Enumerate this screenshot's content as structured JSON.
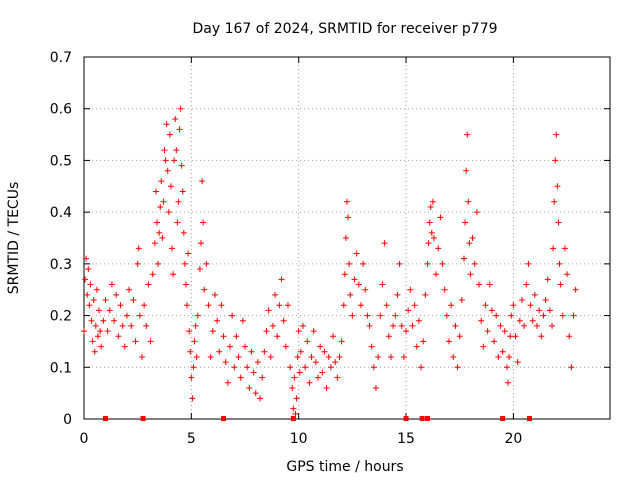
{
  "chart_data": {
    "type": "scatter",
    "title": "Day 167 of 2024, SRMTID for receiver p779",
    "xlabel": "GPS time / hours",
    "ylabel": "SRMTID / TECUs",
    "xlim": [
      0,
      24.5
    ],
    "ylim": [
      0,
      0.7
    ],
    "xticks": [
      0,
      5,
      10,
      15,
      20
    ],
    "yticks": [
      0,
      0.1,
      0.2,
      0.3,
      0.4,
      0.5,
      0.6,
      0.7
    ],
    "xtick_labels": [
      "0",
      "5",
      "10",
      "15",
      "20"
    ],
    "ytick_labels": [
      "0",
      "0.1",
      "0.2",
      "0.3",
      "0.4",
      "0.5",
      "0.6",
      "0.7"
    ],
    "grid": true,
    "marker": "+",
    "color": "#ff0000",
    "series": [
      {
        "name": "SRMTID",
        "points": [
          [
            0.0,
            0.17
          ],
          [
            0.05,
            0.27
          ],
          [
            0.1,
            0.31
          ],
          [
            0.15,
            0.24
          ],
          [
            0.2,
            0.29
          ],
          [
            0.25,
            0.22
          ],
          [
            0.3,
            0.26
          ],
          [
            0.35,
            0.19
          ],
          [
            0.4,
            0.15
          ],
          [
            0.45,
            0.23
          ],
          [
            0.5,
            0.13
          ],
          [
            0.55,
            0.18
          ],
          [
            0.6,
            0.25
          ],
          [
            0.65,
            0.16
          ],
          [
            0.7,
            0.21
          ],
          [
            0.75,
            0.17
          ],
          [
            0.8,
            0.14
          ],
          [
            0.9,
            0.19
          ],
          [
            1.0,
            0.23
          ],
          [
            1.1,
            0.17
          ],
          [
            1.2,
            0.21
          ],
          [
            1.3,
            0.26
          ],
          [
            1.4,
            0.19
          ],
          [
            1.5,
            0.24
          ],
          [
            1.6,
            0.16
          ],
          [
            1.7,
            0.22
          ],
          [
            1.8,
            0.18
          ],
          [
            1.9,
            0.14
          ],
          [
            2.0,
            0.2
          ],
          [
            2.1,
            0.25
          ],
          [
            2.2,
            0.18
          ],
          [
            2.3,
            0.23
          ],
          [
            2.4,
            0.15
          ],
          [
            2.5,
            0.3
          ],
          [
            2.55,
            0.33
          ],
          [
            2.6,
            0.2
          ],
          [
            2.7,
            0.12
          ],
          [
            2.8,
            0.22
          ],
          [
            2.9,
            0.18
          ],
          [
            3.0,
            0.26
          ],
          [
            3.1,
            0.15
          ],
          [
            3.2,
            0.28
          ],
          [
            3.3,
            0.34
          ],
          [
            3.35,
            0.44
          ],
          [
            3.4,
            0.38
          ],
          [
            3.45,
            0.3
          ],
          [
            3.5,
            0.36
          ],
          [
            3.55,
            0.41
          ],
          [
            3.6,
            0.46
          ],
          [
            3.65,
            0.35
          ],
          [
            3.7,
            0.42
          ],
          [
            3.75,
            0.52
          ],
          [
            3.8,
            0.5
          ],
          [
            3.85,
            0.57
          ],
          [
            3.9,
            0.48
          ],
          [
            3.95,
            0.4
          ],
          [
            4.0,
            0.55
          ],
          [
            4.05,
            0.45
          ],
          [
            4.1,
            0.33
          ],
          [
            4.15,
            0.28
          ],
          [
            4.2,
            0.5
          ],
          [
            4.25,
            0.58
          ],
          [
            4.3,
            0.52
          ],
          [
            4.35,
            0.38
          ],
          [
            4.4,
            0.42
          ],
          [
            4.45,
            0.56
          ],
          [
            4.5,
            0.6
          ],
          [
            4.55,
            0.49
          ],
          [
            4.6,
            0.44
          ],
          [
            4.65,
            0.36
          ],
          [
            4.7,
            0.3
          ],
          [
            4.75,
            0.26
          ],
          [
            4.8,
            0.22
          ],
          [
            4.85,
            0.32
          ],
          [
            4.9,
            0.17
          ],
          [
            4.95,
            0.13
          ],
          [
            5.0,
            0.08
          ],
          [
            5.05,
            0.04
          ],
          [
            5.1,
            0.1
          ],
          [
            5.15,
            0.15
          ],
          [
            5.2,
            0.18
          ],
          [
            5.25,
            0.12
          ],
          [
            5.3,
            0.2
          ],
          [
            5.4,
            0.29
          ],
          [
            5.45,
            0.34
          ],
          [
            5.5,
            0.46
          ],
          [
            5.55,
            0.38
          ],
          [
            5.6,
            0.25
          ],
          [
            5.7,
            0.3
          ],
          [
            5.8,
            0.22
          ],
          [
            5.9,
            0.12
          ],
          [
            6.0,
            0.17
          ],
          [
            6.1,
            0.24
          ],
          [
            6.2,
            0.19
          ],
          [
            6.3,
            0.13
          ],
          [
            6.4,
            0.22
          ],
          [
            6.5,
            0.16
          ],
          [
            6.6,
            0.11
          ],
          [
            6.7,
            0.07
          ],
          [
            6.8,
            0.14
          ],
          [
            6.9,
            0.2
          ],
          [
            7.0,
            0.1
          ],
          [
            7.1,
            0.16
          ],
          [
            7.2,
            0.12
          ],
          [
            7.3,
            0.08
          ],
          [
            7.4,
            0.19
          ],
          [
            7.5,
            0.14
          ],
          [
            7.6,
            0.1
          ],
          [
            7.7,
            0.06
          ],
          [
            7.8,
            0.13
          ],
          [
            7.9,
            0.09
          ],
          [
            8.0,
            0.05
          ],
          [
            8.1,
            0.11
          ],
          [
            8.2,
            0.04
          ],
          [
            8.3,
            0.08
          ],
          [
            8.4,
            0.13
          ],
          [
            8.5,
            0.17
          ],
          [
            8.6,
            0.21
          ],
          [
            8.7,
            0.12
          ],
          [
            8.8,
            0.18
          ],
          [
            8.9,
            0.24
          ],
          [
            9.0,
            0.16
          ],
          [
            9.1,
            0.22
          ],
          [
            9.2,
            0.27
          ],
          [
            9.3,
            0.19
          ],
          [
            9.4,
            0.14
          ],
          [
            9.5,
            0.22
          ],
          [
            9.6,
            0.1
          ],
          [
            9.7,
            0.06
          ],
          [
            9.75,
            0.02
          ],
          [
            9.8,
            0.08
          ],
          [
            9.85,
            0.01
          ],
          [
            9.9,
            0.04
          ],
          [
            9.95,
            0.12
          ],
          [
            10.0,
            0.17
          ],
          [
            10.05,
            0.09
          ],
          [
            10.1,
            0.13
          ],
          [
            10.2,
            0.18
          ],
          [
            10.3,
            0.1
          ],
          [
            10.4,
            0.15
          ],
          [
            10.5,
            0.07
          ],
          [
            10.6,
            0.12
          ],
          [
            10.7,
            0.17
          ],
          [
            10.8,
            0.11
          ],
          [
            10.9,
            0.08
          ],
          [
            11.0,
            0.14
          ],
          [
            11.1,
            0.09
          ],
          [
            11.2,
            0.13
          ],
          [
            11.3,
            0.06
          ],
          [
            11.4,
            0.12
          ],
          [
            11.5,
            0.1
          ],
          [
            11.6,
            0.16
          ],
          [
            11.7,
            0.11
          ],
          [
            11.8,
            0.08
          ],
          [
            11.9,
            0.12
          ],
          [
            12.0,
            0.15
          ],
          [
            12.1,
            0.22
          ],
          [
            12.15,
            0.28
          ],
          [
            12.2,
            0.35
          ],
          [
            12.25,
            0.42
          ],
          [
            12.3,
            0.39
          ],
          [
            12.35,
            0.3
          ],
          [
            12.4,
            0.24
          ],
          [
            12.5,
            0.2
          ],
          [
            12.6,
            0.27
          ],
          [
            12.7,
            0.32
          ],
          [
            12.8,
            0.26
          ],
          [
            12.9,
            0.22
          ],
          [
            13.0,
            0.3
          ],
          [
            13.1,
            0.25
          ],
          [
            13.2,
            0.2
          ],
          [
            13.3,
            0.18
          ],
          [
            13.4,
            0.14
          ],
          [
            13.5,
            0.1
          ],
          [
            13.6,
            0.06
          ],
          [
            13.7,
            0.12
          ],
          [
            13.8,
            0.2
          ],
          [
            13.9,
            0.26
          ],
          [
            14.0,
            0.34
          ],
          [
            14.1,
            0.22
          ],
          [
            14.2,
            0.16
          ],
          [
            14.3,
            0.12
          ],
          [
            14.4,
            0.18
          ],
          [
            14.5,
            0.2
          ],
          [
            14.6,
            0.24
          ],
          [
            14.7,
            0.3
          ],
          [
            14.8,
            0.18
          ],
          [
            14.9,
            0.12
          ],
          [
            15.0,
            0.17
          ],
          [
            15.1,
            0.21
          ],
          [
            15.2,
            0.25
          ],
          [
            15.3,
            0.18
          ],
          [
            15.4,
            0.22
          ],
          [
            15.5,
            0.14
          ],
          [
            15.6,
            0.19
          ],
          [
            15.7,
            0.1
          ],
          [
            15.8,
            0.15
          ],
          [
            15.9,
            0.24
          ],
          [
            16.0,
            0.3
          ],
          [
            16.05,
            0.34
          ],
          [
            16.1,
            0.38
          ],
          [
            16.15,
            0.41
          ],
          [
            16.2,
            0.36
          ],
          [
            16.25,
            0.42
          ],
          [
            16.3,
            0.35
          ],
          [
            16.4,
            0.28
          ],
          [
            16.5,
            0.33
          ],
          [
            16.6,
            0.39
          ],
          [
            16.7,
            0.3
          ],
          [
            16.8,
            0.25
          ],
          [
            16.9,
            0.2
          ],
          [
            17.0,
            0.15
          ],
          [
            17.1,
            0.22
          ],
          [
            17.2,
            0.12
          ],
          [
            17.3,
            0.18
          ],
          [
            17.4,
            0.1
          ],
          [
            17.5,
            0.16
          ],
          [
            17.6,
            0.23
          ],
          [
            17.7,
            0.31
          ],
          [
            17.75,
            0.38
          ],
          [
            17.8,
            0.48
          ],
          [
            17.85,
            0.55
          ],
          [
            17.9,
            0.42
          ],
          [
            17.95,
            0.34
          ],
          [
            18.0,
            0.28
          ],
          [
            18.1,
            0.35
          ],
          [
            18.2,
            0.3
          ],
          [
            18.3,
            0.4
          ],
          [
            18.4,
            0.26
          ],
          [
            18.5,
            0.19
          ],
          [
            18.6,
            0.14
          ],
          [
            18.7,
            0.22
          ],
          [
            18.8,
            0.17
          ],
          [
            18.9,
            0.26
          ],
          [
            19.0,
            0.21
          ],
          [
            19.1,
            0.15
          ],
          [
            19.2,
            0.2
          ],
          [
            19.3,
            0.12
          ],
          [
            19.4,
            0.18
          ],
          [
            19.5,
            0.13
          ],
          [
            19.6,
            0.17
          ],
          [
            19.7,
            0.1
          ],
          [
            19.75,
            0.07
          ],
          [
            19.8,
            0.12
          ],
          [
            19.85,
            0.16
          ],
          [
            19.9,
            0.2
          ],
          [
            20.0,
            0.22
          ],
          [
            20.1,
            0.16
          ],
          [
            20.2,
            0.11
          ],
          [
            20.3,
            0.19
          ],
          [
            20.4,
            0.23
          ],
          [
            20.5,
            0.18
          ],
          [
            20.6,
            0.26
          ],
          [
            20.7,
            0.3
          ],
          [
            20.8,
            0.22
          ],
          [
            20.9,
            0.19
          ],
          [
            21.0,
            0.24
          ],
          [
            21.1,
            0.18
          ],
          [
            21.2,
            0.21
          ],
          [
            21.3,
            0.16
          ],
          [
            21.4,
            0.2
          ],
          [
            21.5,
            0.23
          ],
          [
            21.6,
            0.27
          ],
          [
            21.7,
            0.21
          ],
          [
            21.8,
            0.18
          ],
          [
            21.85,
            0.33
          ],
          [
            21.9,
            0.42
          ],
          [
            21.95,
            0.5
          ],
          [
            22.0,
            0.55
          ],
          [
            22.05,
            0.45
          ],
          [
            22.1,
            0.38
          ],
          [
            22.15,
            0.3
          ],
          [
            22.2,
            0.26
          ],
          [
            22.3,
            0.2
          ],
          [
            22.4,
            0.33
          ],
          [
            22.5,
            0.28
          ],
          [
            22.6,
            0.16
          ],
          [
            22.7,
            0.1
          ],
          [
            22.8,
            0.2
          ],
          [
            22.9,
            0.25
          ]
        ]
      }
    ],
    "axis_marks": [
      1.0,
      2.75,
      6.5,
      9.75,
      15.0,
      15.75,
      16.0,
      19.5,
      20.75
    ]
  }
}
